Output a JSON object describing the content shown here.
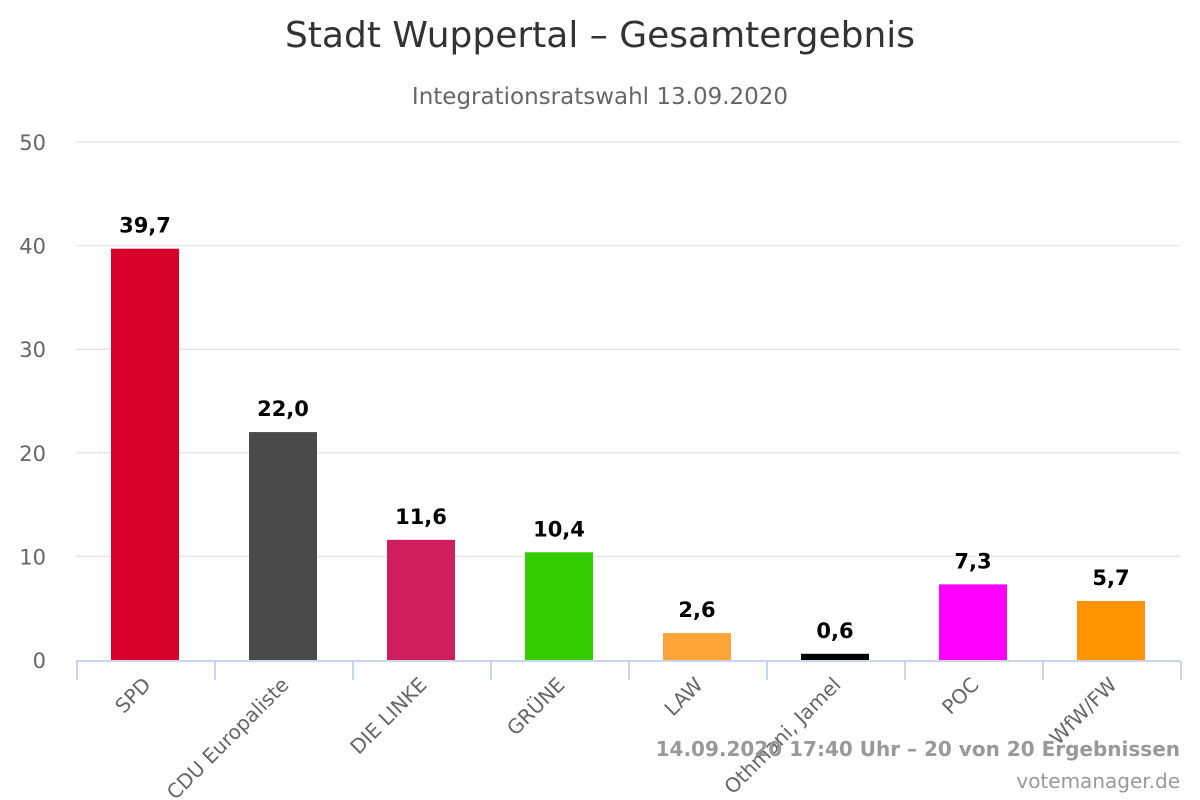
{
  "chart_data": {
    "type": "bar",
    "title": "Stadt Wuppertal – Gesamtergebnis",
    "subtitle": "Integrationsratswahl 13.09.2020",
    "categories": [
      "SPD",
      "CDU Europaliste",
      "DIE LINKE",
      "GRÜNE",
      "LAW",
      "Othmani, Jamel",
      "POC",
      "WfW/FW"
    ],
    "values": [
      39.7,
      22.0,
      11.6,
      10.4,
      2.6,
      0.6,
      7.3,
      5.7
    ],
    "value_labels": [
      "39,7",
      "22,0",
      "11,6",
      "10,4",
      "2,6",
      "0,6",
      "7,3",
      "5,7"
    ],
    "colors": [
      "#d7002b",
      "#4a4a4a",
      "#d01e5d",
      "#33cc00",
      "#ffa537",
      "#000000",
      "#ff00ff",
      "#ff9400"
    ],
    "yticks": [
      0,
      10,
      20,
      30,
      40,
      50
    ],
    "ylim": [
      0,
      50
    ],
    "grid": true,
    "legend": "none"
  },
  "footer": {
    "status": "14.09.2020 17:40 Uhr – 20 von 20 Ergebnissen",
    "credit": "votemanager.de"
  }
}
